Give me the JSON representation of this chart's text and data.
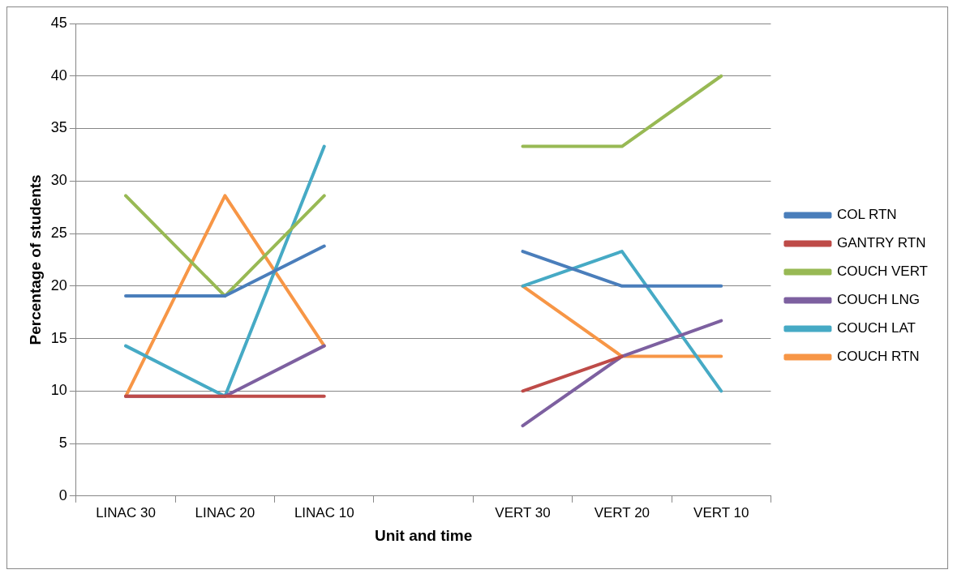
{
  "chart_data": {
    "type": "line",
    "xlabel": "Unit and time",
    "ylabel": "Percentage of students",
    "categories": [
      "LINAC 30",
      "LINAC 20",
      "LINAC 10",
      null,
      "VERT 30",
      "VERT 20",
      "VERT 10"
    ],
    "series": [
      {
        "name": "COL RTN",
        "color": "#4a7ebb",
        "values": [
          19.05,
          19.05,
          23.8,
          null,
          23.3,
          20,
          20
        ]
      },
      {
        "name": "GANTRY RTN",
        "color": "#be4b48",
        "values": [
          9.5,
          9.5,
          9.5,
          null,
          10,
          13.3,
          null
        ]
      },
      {
        "name": "COUCH VERT",
        "color": "#98b954",
        "values": [
          28.6,
          19.05,
          28.6,
          null,
          33.3,
          33.3,
          40
        ]
      },
      {
        "name": "COUCH LNG",
        "color": "#7d60a0",
        "values": [
          9.5,
          9.5,
          14.3,
          null,
          6.7,
          13.3,
          16.7
        ]
      },
      {
        "name": "COUCH LAT",
        "color": "#46aac5",
        "values": [
          14.3,
          9.5,
          33.3,
          null,
          20,
          23.3,
          10
        ]
      },
      {
        "name": "COUCH RTN",
        "color": "#f79646",
        "values": [
          9.5,
          28.6,
          14.3,
          null,
          20,
          13.3,
          13.3
        ]
      }
    ],
    "ylim": [
      0,
      45
    ],
    "yticks": [
      0,
      5,
      10,
      15,
      20,
      25,
      30,
      35,
      40,
      45
    ],
    "grid": "y",
    "legend": "right",
    "marker": "none",
    "line_style": "solid"
  }
}
